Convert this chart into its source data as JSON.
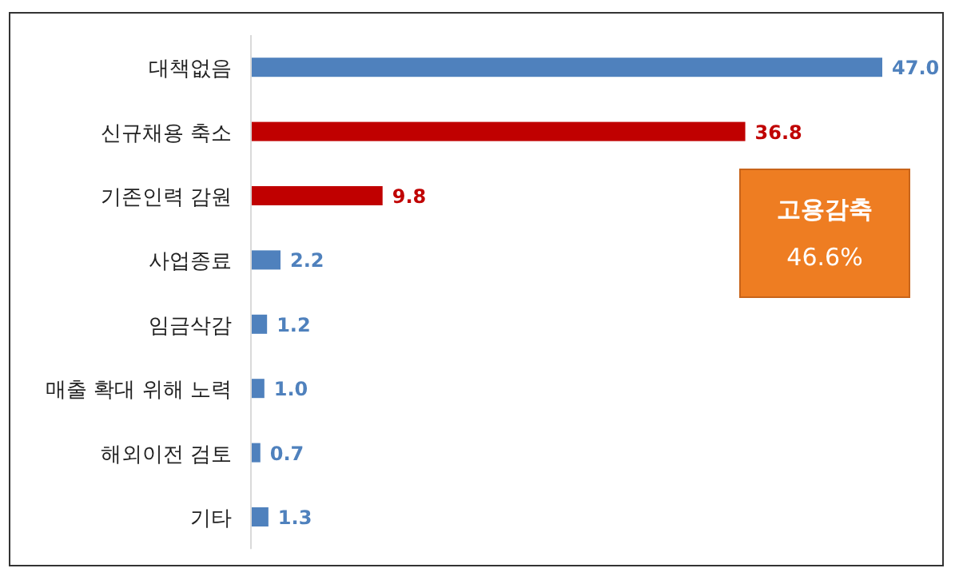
{
  "chart_data": {
    "type": "bar",
    "orientation": "horizontal",
    "categories": [
      "대책없음",
      "신규채용 축소",
      "기존인력 감원",
      "사업종료",
      "임금삭감",
      "매출 확대 위해 노력",
      "해외이전 검토",
      "기타"
    ],
    "values": [
      47.0,
      36.8,
      9.8,
      2.2,
      1.2,
      1.0,
      0.7,
      1.3
    ],
    "colors": [
      "#4f81bd",
      "#c00000",
      "#c00000",
      "#4f81bd",
      "#4f81bd",
      "#4f81bd",
      "#4f81bd",
      "#4f81bd"
    ],
    "value_labels": [
      "47.0",
      "36.8",
      "9.8",
      "2.2",
      "1.2",
      "1.0",
      "0.7",
      "1.3"
    ],
    "annotations": [
      "고용감축",
      "46.6%"
    ]
  }
}
